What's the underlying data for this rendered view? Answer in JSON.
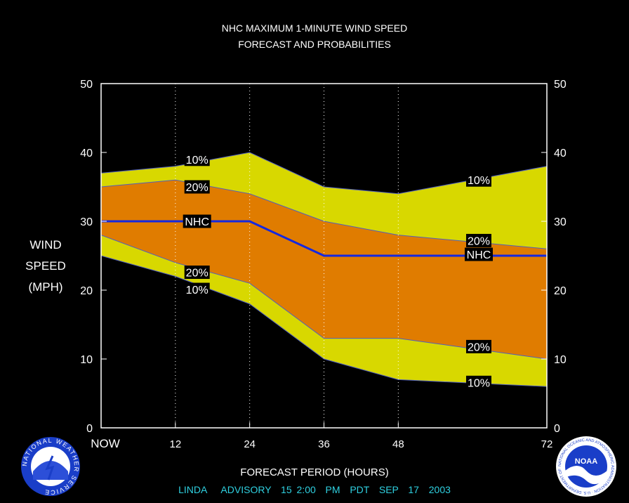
{
  "header": {
    "title": "NHC MAXIMUM 1-MINUTE WIND SPEED",
    "subtitle": "FORECAST AND PROBABILITIES"
  },
  "axis": {
    "ylabel": [
      "WIND",
      "SPEED",
      "(MPH)"
    ],
    "xlabel": "FORECAST PERIOD (HOURS)"
  },
  "footer": {
    "advisory": "LINDA   ADVISORY  15 2:00  PM  PDT  SEP  17  2003"
  },
  "logos": {
    "left": "NATIONAL WEATHER SERVICE",
    "right": "NOAA",
    "right_ring": "NATIONAL OCEANIC AND ATMOSPHERIC ADMINISTRATION · U.S. DEPARTMENT OF COMMERCE"
  },
  "colors": {
    "background": "#000000",
    "outer_band": "#d8d800",
    "inner_band": "#e07c00",
    "nhc_line": "#1428e0",
    "grid": "#ffffff",
    "footer_text": "#2fd0e0"
  },
  "chart_data": {
    "type": "area",
    "x": [
      0,
      12,
      24,
      36,
      48,
      72
    ],
    "x_tick_labels": [
      "NOW",
      "12",
      "24",
      "36",
      "48",
      "72"
    ],
    "xlim": [
      0,
      72
    ],
    "ylim": [
      0,
      50
    ],
    "y_ticks": [
      0,
      10,
      20,
      30,
      40,
      50
    ],
    "grid": "dotted vertical at 12, 24, 36, 48",
    "series": [
      {
        "name": "10%",
        "role": "upper",
        "values": [
          37,
          38,
          40,
          35,
          34,
          38
        ]
      },
      {
        "name": "20%",
        "role": "upper",
        "values": [
          35,
          36,
          34,
          30,
          28,
          26
        ]
      },
      {
        "name": "NHC",
        "values": [
          30,
          30,
          30,
          25,
          25,
          25
        ]
      },
      {
        "name": "20%",
        "role": "lower",
        "values": [
          28,
          24,
          21,
          13,
          13,
          10
        ]
      },
      {
        "name": "10%",
        "role": "lower",
        "values": [
          25,
          22,
          18,
          10,
          7,
          6
        ]
      }
    ],
    "labels": [
      {
        "text": "10%",
        "x": 15.5,
        "y": 39
      },
      {
        "text": "20%",
        "x": 15.5,
        "y": 35
      },
      {
        "text": "NHC",
        "x": 15.5,
        "y": 30
      },
      {
        "text": "20%",
        "x": 15.5,
        "y": 22.6
      },
      {
        "text": "10%",
        "x": 15.5,
        "y": 20.1
      },
      {
        "text": "10%",
        "x": 61,
        "y": 36
      },
      {
        "text": "20%",
        "x": 61,
        "y": 27.2
      },
      {
        "text": "NHC",
        "x": 61,
        "y": 25.2
      },
      {
        "text": "20%",
        "x": 61,
        "y": 11.8
      },
      {
        "text": "10%",
        "x": 61,
        "y": 6.6
      }
    ]
  }
}
